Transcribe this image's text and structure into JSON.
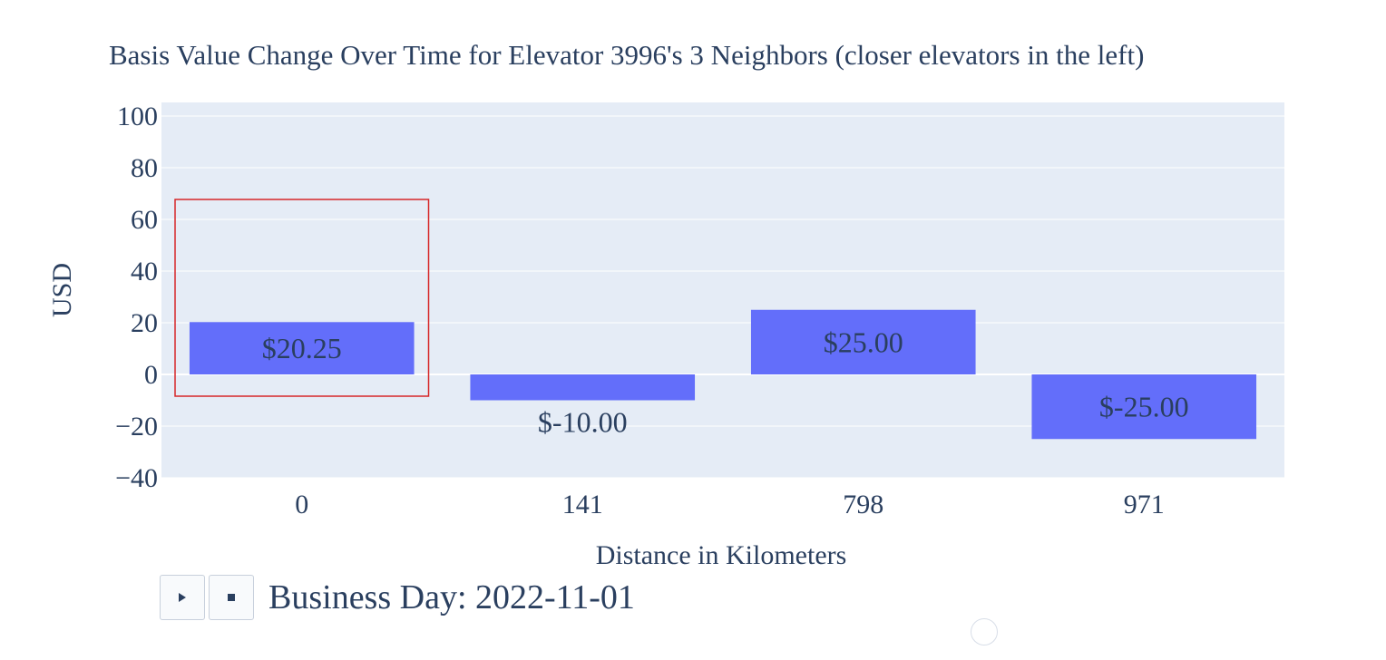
{
  "chart_data": {
    "type": "bar",
    "title": "Basis Value Change Over Time for Elevator 3996's 3 Neighbors (closer elevators in the left)",
    "xlabel": "Distance in Kilometers",
    "ylabel": "USD",
    "categories": [
      "0",
      "141",
      "798",
      "971"
    ],
    "values": [
      20.25,
      -10,
      25,
      -25
    ],
    "data_labels": [
      "$20.25",
      "$-10.00",
      "$25.00",
      "$-25.00"
    ],
    "ylim": [
      -40,
      100
    ],
    "yticks": [
      100,
      80,
      60,
      40,
      20,
      0,
      -20,
      -40
    ],
    "ytick_labels": [
      "100",
      "80",
      "60",
      "40",
      "20",
      "0",
      "−20",
      "−40"
    ],
    "grid": true,
    "highlighted_category": "0",
    "colors": {
      "bar": "#636efa",
      "plot_bg": "#e5ecf6",
      "grid": "#ffffff",
      "highlight_box": "#d62728",
      "text": "#2a3f5f"
    }
  },
  "controls": {
    "play_icon": "play-icon",
    "pause_icon": "stop-icon",
    "frame_label": "Business Day: 2022-11-01"
  }
}
